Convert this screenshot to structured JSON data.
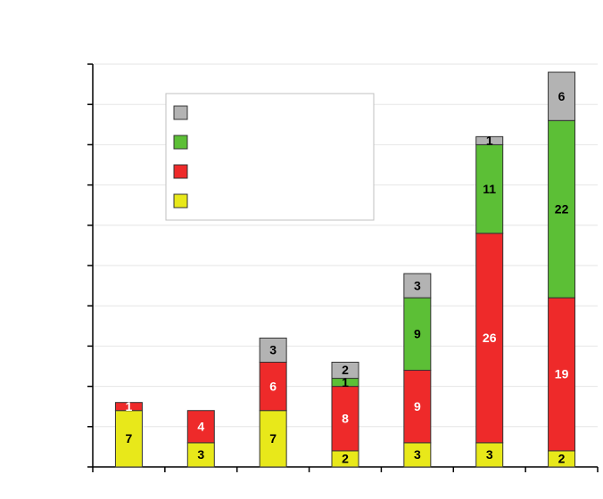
{
  "chart_data": {
    "type": "bar",
    "stacked": true,
    "categories": [
      "",
      "",
      "",
      "",
      "",
      "",
      ""
    ],
    "series": [
      {
        "color": "#e8e81a",
        "values": [
          7,
          3,
          7,
          2,
          3,
          3,
          2
        ],
        "labels": [
          "7",
          "3",
          "7",
          "2",
          "3",
          "3",
          "2"
        ],
        "label_color": "#000000"
      },
      {
        "color": "#ee2a2a",
        "values": [
          1,
          4,
          6,
          8,
          9,
          26,
          19
        ],
        "labels": [
          "1",
          "4",
          "6",
          "8",
          "9",
          "26",
          "19"
        ],
        "label_color": "#ffffff"
      },
      {
        "color": "#5cbf36",
        "values": [
          0,
          0,
          0,
          1,
          9,
          11,
          22
        ],
        "labels": [
          "",
          "",
          "",
          "1",
          "9",
          "11",
          "22"
        ],
        "label_color": "#000000"
      },
      {
        "color": "#b3b3b3",
        "values": [
          0,
          0,
          3,
          2,
          3,
          1,
          6
        ],
        "labels": [
          "",
          "",
          "3",
          "2",
          "3",
          "1",
          "6"
        ],
        "label_color": "#000000"
      }
    ],
    "ylim": [
      0,
      50
    ],
    "grid": true,
    "legend": "top-left",
    "title": "",
    "xlabel": "",
    "ylabel": ""
  }
}
